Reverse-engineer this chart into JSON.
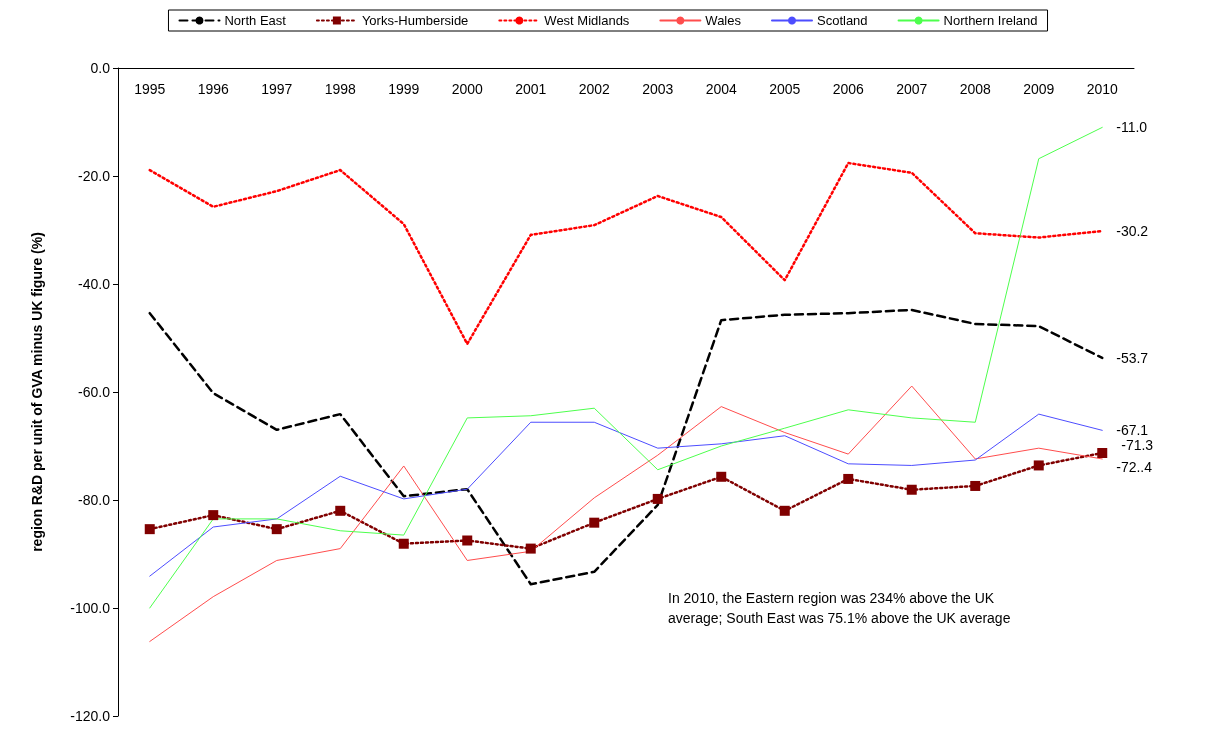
{
  "chart_data": {
    "type": "line",
    "ylabel": "region R&D per unit of GVA minus UK figure (%)",
    "categories": [
      "1995",
      "1996",
      "1997",
      "1998",
      "1999",
      "2000",
      "2001",
      "2002",
      "2003",
      "2004",
      "2005",
      "2006",
      "2007",
      "2008",
      "2009",
      "2010"
    ],
    "series": [
      {
        "name": "North East",
        "color": "#000000",
        "line_style": "dashed",
        "marker": "none",
        "values": [
          -45.4,
          -60.2,
          -67.0,
          -64.1,
          -79.3,
          -78.0,
          -95.6,
          -93.3,
          -80.9,
          -46.7,
          -45.7,
          -45.4,
          -44.8,
          -47.4,
          -47.8,
          -53.7
        ],
        "value_labels": [
          null,
          null,
          null,
          null,
          null,
          null,
          null,
          null,
          null,
          null,
          null,
          null,
          null,
          null,
          null,
          "-53.7"
        ]
      },
      {
        "name": "Yorks-Humberside",
        "color": "#800000",
        "line_style": "dotted",
        "marker": "square",
        "values": [
          -85.4,
          -82.8,
          -85.4,
          -82.0,
          -88.1,
          -87.5,
          -89.0,
          -84.2,
          -79.8,
          -75.7,
          -82.0,
          -76.1,
          -78.1,
          -77.4,
          -73.6,
          -71.3
        ],
        "value_labels": [
          null,
          null,
          null,
          null,
          null,
          null,
          null,
          null,
          null,
          null,
          null,
          null,
          null,
          null,
          null,
          "-71.3"
        ]
      },
      {
        "name": "West Midlands",
        "color": "#ff0000",
        "line_style": "dotted",
        "marker": "none",
        "values": [
          -18.9,
          -25.7,
          -22.8,
          -18.9,
          -28.9,
          -51.1,
          -30.9,
          -29.1,
          -23.7,
          -27.6,
          -39.3,
          -17.6,
          -19.4,
          -30.6,
          -31.4,
          -30.2
        ],
        "value_labels": [
          null,
          null,
          null,
          null,
          null,
          null,
          null,
          null,
          null,
          null,
          null,
          null,
          null,
          null,
          null,
          "-30.2"
        ]
      },
      {
        "name": "Wales",
        "color": "#ff4d4d",
        "line_style": "solid",
        "marker": "none",
        "values": [
          -106.2,
          -97.9,
          -91.2,
          -89.0,
          -73.7,
          -91.2,
          -89.5,
          -79.6,
          -71.7,
          -62.7,
          -67.5,
          -71.5,
          -58.9,
          -72.4,
          -70.4,
          -72.4
        ],
        "value_labels": [
          null,
          null,
          null,
          null,
          null,
          null,
          null,
          null,
          null,
          null,
          null,
          null,
          null,
          null,
          null,
          "-72..4"
        ]
      },
      {
        "name": "Scotland",
        "color": "#4d4dff",
        "line_style": "solid",
        "marker": "none",
        "values": [
          -94.1,
          -85.0,
          -83.5,
          -75.6,
          -79.8,
          -78.0,
          -65.6,
          -65.6,
          -70.4,
          -69.6,
          -68.1,
          -73.3,
          -73.6,
          -72.6,
          -64.1,
          -67.1
        ],
        "value_labels": [
          null,
          null,
          null,
          null,
          null,
          null,
          null,
          null,
          null,
          null,
          null,
          null,
          null,
          null,
          null,
          "-67.1"
        ]
      },
      {
        "name": "Northern Ireland",
        "color": "#4dff4d",
        "line_style": "solid",
        "marker": "none",
        "values": [
          -100.0,
          -83.5,
          -83.5,
          -85.7,
          -86.5,
          -64.8,
          -64.4,
          -63.0,
          -74.4,
          -70.0,
          -66.7,
          -63.3,
          -64.8,
          -65.6,
          -16.8,
          -11.0
        ],
        "value_labels": [
          null,
          null,
          null,
          null,
          null,
          null,
          null,
          null,
          null,
          null,
          null,
          null,
          null,
          null,
          null,
          "-11.0"
        ]
      }
    ],
    "ylim": [
      -120,
      0
    ],
    "yticks": [
      {
        "value": -120,
        "label": "-120.0"
      },
      {
        "value": -100,
        "label": "-100.0"
      },
      {
        "value": -80,
        "label": "-80.0"
      },
      {
        "value": -60,
        "label": "-60.0"
      },
      {
        "value": -40,
        "label": "-40.0"
      },
      {
        "value": -20,
        "label": "-20.0"
      },
      {
        "value": 0,
        "label": "0.0"
      }
    ],
    "grid": false,
    "legend": "top",
    "annotations": [
      "In 2010, the Eastern region was 234% above the UK average; South East was 75.1% above the UK average"
    ]
  }
}
